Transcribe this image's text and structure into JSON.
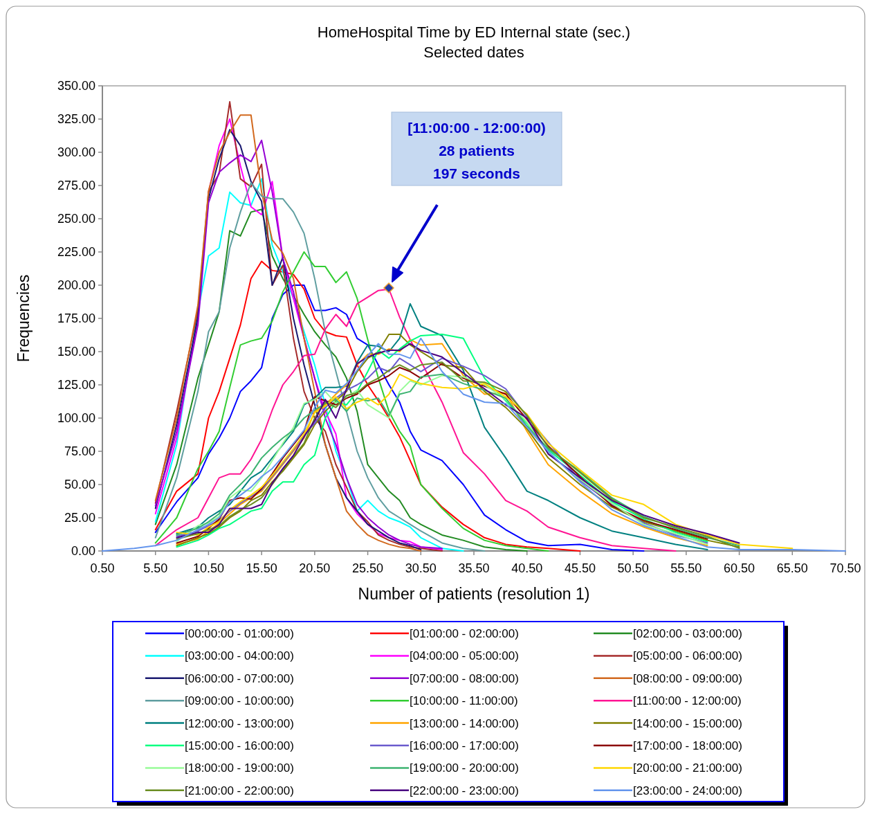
{
  "chart_data": {
    "type": "line",
    "title": "HomeHospital Time by ED Internal state (sec.)",
    "subtitle": "Selected dates",
    "xlabel": "Number of patients (resolution 1)",
    "ylabel": "Frequencies",
    "x": [
      0.5,
      3.5,
      5.5,
      7.5,
      9.5,
      10.5,
      11.5,
      12.5,
      13.5,
      14.5,
      15.5,
      16.5,
      17.5,
      18.5,
      19.5,
      20.5,
      21.5,
      22.5,
      23.5,
      24.5,
      25.5,
      26.5,
      27.5,
      28.5,
      29.5,
      30.5,
      32.5,
      34.5,
      36.5,
      38.5,
      40.5,
      42.5,
      45.5,
      48.5,
      51.5,
      54.5,
      57.5,
      60.5,
      65.5,
      70.5
    ],
    "xlim": [
      0.5,
      70.5
    ],
    "xticks": [
      {
        "value": 0.5,
        "label": "0.50"
      },
      {
        "value": 5.5,
        "label": "5.50"
      },
      {
        "value": 10.5,
        "label": "10.50"
      },
      {
        "value": 15.5,
        "label": "15.50"
      },
      {
        "value": 20.5,
        "label": "20.50"
      },
      {
        "value": 25.5,
        "label": "25.50"
      },
      {
        "value": 30.5,
        "label": "30.50"
      },
      {
        "value": 35.5,
        "label": "35.50"
      },
      {
        "value": 40.5,
        "label": "40.50"
      },
      {
        "value": 45.5,
        "label": "45.50"
      },
      {
        "value": 50.5,
        "label": "50.50"
      },
      {
        "value": 55.5,
        "label": "55.50"
      },
      {
        "value": 60.5,
        "label": "60.50"
      },
      {
        "value": 65.5,
        "label": "65.50"
      },
      {
        "value": 70.5,
        "label": "70.50"
      }
    ],
    "ylim": [
      0,
      350
    ],
    "yticks": [
      {
        "value": 0,
        "label": "0.00"
      },
      {
        "value": 25,
        "label": "25.00"
      },
      {
        "value": 50,
        "label": "50.00"
      },
      {
        "value": 75,
        "label": "75.00"
      },
      {
        "value": 100,
        "label": "100.00"
      },
      {
        "value": 125,
        "label": "125.00"
      },
      {
        "value": 150,
        "label": "150.00"
      },
      {
        "value": 175,
        "label": "175.00"
      },
      {
        "value": 200,
        "label": "200.00"
      },
      {
        "value": 225,
        "label": "225.00"
      },
      {
        "value": 250,
        "label": "250.00"
      },
      {
        "value": 275,
        "label": "275.00"
      },
      {
        "value": 300,
        "label": "300.00"
      },
      {
        "value": 325,
        "label": "325.00"
      },
      {
        "value": 350,
        "label": "350.00"
      }
    ],
    "legend": "bottom",
    "marker": "none",
    "line_style": "solid",
    "annotations": [
      "[11:00:00 - 12:00:00)\n28 patients\n197 seconds"
    ],
    "series": [
      {
        "name": "[00:00:00 - 01:00:00)",
        "color": "#0000ff",
        "values": [
          null,
          null,
          14,
          37,
          55,
          73,
          85,
          100,
          120,
          128,
          138,
          175,
          193,
          200,
          200,
          181,
          181,
          183,
          178,
          160,
          155,
          140,
          125,
          112,
          90,
          76,
          68,
          50,
          27,
          16,
          7,
          4,
          5,
          1,
          0,
          null,
          null,
          null,
          null,
          null
        ]
      },
      {
        "name": "[01:00:00 - 02:00:00)",
        "color": "#ff0000",
        "values": [
          null,
          null,
          16,
          45,
          58,
          100,
          120,
          145,
          170,
          205,
          218,
          211,
          210,
          208,
          197,
          175,
          165,
          162,
          161,
          140,
          125,
          113,
          100,
          86,
          68,
          50,
          33,
          20,
          10,
          5,
          3,
          2,
          0,
          null,
          null,
          null,
          null,
          null,
          null,
          null
        ]
      },
      {
        "name": "[02:00:00 - 03:00:00)",
        "color": "#228b22",
        "values": [
          null,
          null,
          20,
          65,
          130,
          155,
          180,
          241,
          237,
          255,
          257,
          222,
          205,
          192,
          178,
          165,
          155,
          146,
          130,
          105,
          65,
          55,
          45,
          38,
          25,
          20,
          12,
          8,
          3,
          1,
          0,
          null,
          null,
          null,
          null,
          null,
          null,
          null,
          null,
          null
        ]
      },
      {
        "name": "[03:00:00 - 04:00:00)",
        "color": "#00ffff",
        "values": [
          null,
          null,
          22,
          80,
          180,
          222,
          228,
          270,
          262,
          260,
          280,
          230,
          210,
          190,
          165,
          140,
          110,
          75,
          55,
          30,
          38,
          30,
          25,
          22,
          18,
          10,
          2,
          0,
          null,
          null,
          null,
          null,
          null,
          null,
          null,
          null,
          null,
          null,
          null,
          null
        ]
      },
      {
        "name": "[04:00:00 - 05:00:00)",
        "color": "#ff00ff",
        "values": [
          null,
          null,
          28,
          85,
          175,
          270,
          305,
          325,
          290,
          259,
          253,
          278,
          220,
          190,
          160,
          130,
          105,
          88,
          40,
          28,
          20,
          13,
          10,
          8,
          7,
          3,
          1,
          null,
          null,
          null,
          null,
          null,
          null,
          null,
          null,
          null,
          null,
          null,
          null,
          null
        ]
      },
      {
        "name": "[05:00:00 - 06:00:00)",
        "color": "#a52a2a",
        "values": [
          null,
          null,
          36,
          105,
          181,
          270,
          284,
          338,
          280,
          274,
          291,
          200,
          215,
          160,
          120,
          100,
          90,
          65,
          48,
          30,
          22,
          12,
          8,
          5,
          3,
          2,
          0,
          null,
          null,
          null,
          null,
          null,
          null,
          null,
          null,
          null,
          null,
          null,
          null,
          null
        ]
      },
      {
        "name": "[06:00:00 - 07:00:00)",
        "color": "#191970",
        "values": [
          null,
          null,
          32,
          95,
          176,
          265,
          295,
          317,
          305,
          278,
          263,
          200,
          221,
          175,
          140,
          110,
          80,
          55,
          40,
          30,
          20,
          15,
          10,
          6,
          4,
          1,
          null,
          null,
          null,
          null,
          null,
          null,
          null,
          null,
          null,
          null,
          null,
          null,
          null,
          null
        ]
      },
      {
        "name": "[07:00:00 - 08:00:00)",
        "color": "#9400d3",
        "values": [
          null,
          null,
          34,
          90,
          170,
          262,
          285,
          292,
          298,
          293,
          309,
          270,
          220,
          195,
          160,
          130,
          100,
          80,
          55,
          35,
          25,
          18,
          12,
          8,
          5,
          3,
          2,
          null,
          null,
          null,
          null,
          null,
          null,
          null,
          null,
          null,
          null,
          null,
          null,
          null
        ]
      },
      {
        "name": "[08:00:00 - 09:00:00)",
        "color": "#d2691e",
        "values": [
          null,
          null,
          38,
          100,
          185,
          271,
          300,
          315,
          328,
          328,
          270,
          234,
          224,
          205,
          160,
          120,
          80,
          55,
          30,
          20,
          12,
          8,
          5,
          3,
          2,
          0,
          null,
          null,
          null,
          null,
          null,
          null,
          null,
          null,
          null,
          null,
          null,
          null,
          null,
          null
        ]
      },
      {
        "name": "[09:00:00 - 10:00:00)",
        "color": "#5f9ea0",
        "values": [
          null,
          null,
          10,
          55,
          120,
          165,
          180,
          228,
          255,
          277,
          267,
          265,
          265,
          255,
          239,
          205,
          165,
          135,
          105,
          75,
          55,
          40,
          30,
          25,
          20,
          15,
          6,
          2,
          0,
          null,
          null,
          null,
          null,
          null,
          null,
          null,
          null,
          null,
          null,
          null
        ]
      },
      {
        "name": "[10:00:00 - 11:00:00)",
        "color": "#32cd32",
        "values": [
          null,
          null,
          6,
          25,
          62,
          75,
          90,
          123,
          155,
          158,
          160,
          173,
          195,
          210,
          225,
          214,
          214,
          202,
          210,
          190,
          159,
          130,
          105,
          90,
          79,
          50,
          32,
          17,
          8,
          4,
          2,
          0,
          null,
          null,
          null,
          null,
          null,
          null,
          null,
          null
        ]
      },
      {
        "name": "[11:00:00 - 12:00:00)",
        "color": "#ff1493",
        "values": [
          null,
          null,
          4,
          16,
          25,
          40,
          55,
          58,
          58,
          69,
          84,
          106,
          125,
          135,
          147,
          148,
          167,
          178,
          169,
          186,
          191,
          196,
          197,
          176,
          159,
          143,
          112,
          74,
          58,
          38,
          30,
          18,
          10,
          4,
          2,
          0,
          null,
          null,
          null,
          null
        ]
      },
      {
        "name": "[12:00:00 - 13:00:00)",
        "color": "#008080",
        "values": [
          null,
          null,
          null,
          13,
          18,
          25,
          30,
          35,
          45,
          55,
          60,
          70,
          80,
          90,
          110,
          115,
          123,
          123,
          124,
          142,
          155,
          154,
          150,
          160,
          186,
          169,
          162,
          136,
          93,
          70,
          45,
          38,
          25,
          15,
          10,
          5,
          1,
          null,
          null,
          null
        ]
      },
      {
        "name": "[13:00:00 - 14:00:00)",
        "color": "#ffa500",
        "values": [
          null,
          null,
          null,
          5,
          9,
          15,
          21,
          28,
          35,
          40,
          45,
          55,
          65,
          75,
          85,
          105,
          110,
          118,
          125,
          140,
          148,
          148,
          152,
          150,
          159,
          155,
          156,
          132,
          118,
          119,
          90,
          65,
          45,
          28,
          18,
          10,
          4,
          null,
          null,
          null
        ]
      },
      {
        "name": "[14:00:00 - 15:00:00)",
        "color": "#808000",
        "values": [
          null,
          null,
          null,
          4,
          10,
          13,
          18,
          25,
          30,
          38,
          42,
          52,
          60,
          70,
          80,
          95,
          105,
          113,
          120,
          135,
          145,
          150,
          163,
          163,
          155,
          150,
          140,
          138,
          120,
          108,
          92,
          70,
          50,
          33,
          22,
          15,
          8,
          3,
          null,
          null
        ]
      },
      {
        "name": "[15:00:00 - 16:00:00)",
        "color": "#00ff7f",
        "values": [
          null,
          null,
          null,
          3,
          8,
          12,
          17,
          20,
          25,
          30,
          32,
          45,
          52,
          52,
          65,
          72,
          100,
          112,
          110,
          120,
          135,
          151,
          145,
          152,
          158,
          162,
          163,
          160,
          130,
          113,
          96,
          76,
          57,
          37,
          24,
          14,
          7,
          null,
          null,
          null
        ]
      },
      {
        "name": "[16:00:00 - 17:00:00)",
        "color": "#6a5acd",
        "values": [
          null,
          null,
          null,
          11,
          15,
          19,
          23,
          30,
          36,
          41,
          46,
          56,
          66,
          76,
          87,
          96,
          108,
          115,
          121,
          125,
          130,
          138,
          135,
          145,
          140,
          135,
          145,
          139,
          132,
          122,
          101,
          82,
          53,
          35,
          21,
          12,
          6,
          null,
          null,
          null
        ]
      },
      {
        "name": "[17:00:00 - 18:00:00)",
        "color": "#8b0000",
        "values": [
          null,
          null,
          null,
          6,
          11,
          17,
          24,
          38,
          40,
          39,
          47,
          58,
          70,
          80,
          90,
          116,
          113,
          110,
          115,
          118,
          125,
          128,
          132,
          138,
          135,
          130,
          141,
          130,
          124,
          118,
          99,
          79,
          56,
          34,
          23,
          16,
          9,
          null,
          null,
          null
        ]
      },
      {
        "name": "[18:00:00 - 19:00:00)",
        "color": "#98fb98",
        "values": [
          null,
          null,
          null,
          7,
          19,
          21,
          26,
          40,
          46,
          45,
          55,
          68,
          81,
          93,
          111,
          114,
          120,
          111,
          116,
          121,
          110,
          105,
          100,
          120,
          128,
          125,
          132,
          131,
          125,
          114,
          97,
          74,
          54,
          36,
          20,
          13,
          5,
          null,
          null,
          null
        ]
      },
      {
        "name": "[19:00:00 - 20:00:00)",
        "color": "#3cb371",
        "values": [
          null,
          null,
          null,
          12,
          17,
          22,
          28,
          42,
          50,
          58,
          70,
          78,
          85,
          91,
          100,
          106,
          111,
          114,
          105,
          115,
          113,
          115,
          102,
          118,
          120,
          131,
          133,
          126,
          121,
          115,
          94,
          77,
          60,
          40,
          26,
          17,
          10,
          4,
          null,
          null
        ]
      },
      {
        "name": "[20:00:00 - 21:00:00)",
        "color": "#ffd700",
        "values": [
          null,
          null,
          null,
          14,
          12,
          18,
          22,
          31,
          37,
          42,
          48,
          57,
          67,
          77,
          88,
          104,
          109,
          116,
          107,
          112,
          115,
          110,
          118,
          133,
          129,
          126,
          123,
          122,
          126,
          116,
          103,
          81,
          61,
          42,
          35,
          20,
          12,
          5,
          2,
          null
        ]
      },
      {
        "name": "[21:00:00 - 22:00:00)",
        "color": "#6b8e23",
        "values": [
          null,
          null,
          null,
          9,
          13,
          16,
          19,
          26,
          31,
          35,
          40,
          50,
          61,
          71,
          81,
          100,
          112,
          108,
          117,
          119,
          126,
          130,
          136,
          140,
          136,
          140,
          142,
          128,
          127,
          120,
          102,
          78,
          59,
          39,
          25,
          18,
          11,
          2,
          null,
          null
        ]
      },
      {
        "name": "[22:00:00 - 23:00:00)",
        "color": "#4b0082",
        "values": [
          null,
          null,
          null,
          10,
          14,
          14,
          20,
          32,
          32,
          32,
          35,
          51,
          62,
          72,
          86,
          98,
          114,
          100,
          122,
          141,
          146,
          149,
          151,
          151,
          156,
          151,
          146,
          134,
          122,
          110,
          100,
          73,
          55,
          38,
          27,
          19,
          13,
          6,
          null,
          null
        ]
      },
      {
        "name": "[23:00:00 - 24:00:00)",
        "color": "#6495ed",
        "values": [
          0,
          2,
          4,
          8,
          16,
          20,
          25,
          37,
          42,
          48,
          56,
          62,
          71,
          81,
          91,
          108,
          121,
          119,
          126,
          136,
          147,
          156,
          148,
          148,
          145,
          160,
          135,
          118,
          112,
          111,
          93,
          75,
          52,
          31,
          19,
          11,
          3,
          1,
          1,
          0
        ]
      }
    ]
  }
}
